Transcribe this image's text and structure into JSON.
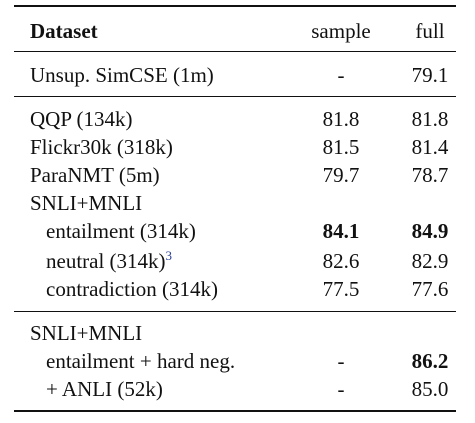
{
  "header": {
    "dataset": "Dataset",
    "sample": "sample",
    "full": "full"
  },
  "rows": [
    {
      "name": "Unsup. SimCSE (1m)",
      "sample": "-",
      "full": "79.1"
    },
    {
      "name": "QQP (134k)",
      "sample": "81.8",
      "full": "81.8"
    },
    {
      "name": "Flickr30k (318k)",
      "sample": "81.5",
      "full": "81.4"
    },
    {
      "name": "ParaNMT (5m)",
      "sample": "79.7",
      "full": "78.7"
    },
    {
      "name": "SNLI+MNLI",
      "sample": "",
      "full": ""
    },
    {
      "name": "entailment (314k)",
      "sample": "84.1",
      "full": "84.9"
    },
    {
      "name": "neutral (314k)",
      "footnote": "3",
      "sample": "82.6",
      "full": "82.9"
    },
    {
      "name": "contradiction (314k)",
      "sample": "77.5",
      "full": "77.6"
    },
    {
      "name": "SNLI+MNLI",
      "sample": "",
      "full": ""
    },
    {
      "name": "entailment + hard neg.",
      "sample": "-",
      "full": "86.2"
    },
    {
      "name": "+ ANLI (52k)",
      "sample": "-",
      "full": "85.0"
    }
  ]
}
